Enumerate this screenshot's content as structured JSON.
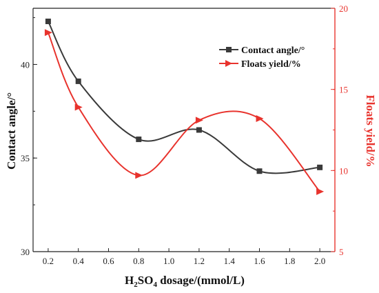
{
  "chart_data": {
    "type": "line",
    "x": [
      0.2,
      0.4,
      0.8,
      1.2,
      1.6,
      2.0
    ],
    "x_ticks": [
      "0.2",
      "0.4",
      "0.6",
      "0.8",
      "1.0",
      "1.2",
      "1.4",
      "1.6",
      "1.8",
      "2.0"
    ],
    "xlim": [
      0.1,
      2.1
    ],
    "xlabel": {
      "base": "H",
      "sub1": "2",
      "mid": "SO",
      "sub2": "4",
      "rest": " dosage/(mmol/L)"
    },
    "series": [
      {
        "name": "Contact angle/°",
        "axis": "left",
        "color": "#3a3a3a",
        "marker": "square",
        "values": [
          42.3,
          39.1,
          36.0,
          36.5,
          34.3,
          34.5
        ]
      },
      {
        "name": "Floats yield/%",
        "axis": "right",
        "color": "#e8332d",
        "marker": "triangle-right",
        "values": [
          18.5,
          13.9,
          9.7,
          13.1,
          13.2,
          8.7
        ]
      }
    ],
    "y_left": {
      "label": "Contact angle/°",
      "ylim": [
        30,
        43
      ],
      "ticks": [
        "30",
        "35",
        "40"
      ]
    },
    "y_right": {
      "label": "Floats yield/%",
      "ylim": [
        5,
        20
      ],
      "ticks": [
        "5",
        "10",
        "15",
        "20"
      ]
    },
    "legend_position": "top-right"
  }
}
